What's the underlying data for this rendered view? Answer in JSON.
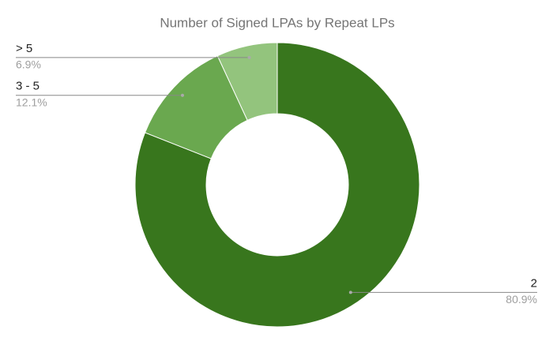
{
  "chart_data": {
    "type": "donut",
    "title": "Number of Signed LPAs by Repeat LPs",
    "categories": [
      "2",
      "3 - 5",
      "> 5"
    ],
    "values": [
      80.9,
      12.1,
      6.9
    ],
    "value_labels": [
      "80.9%",
      "12.1%",
      "6.9%"
    ],
    "colors": [
      "#38761d",
      "#6aa84f",
      "#93c47d"
    ]
  }
}
